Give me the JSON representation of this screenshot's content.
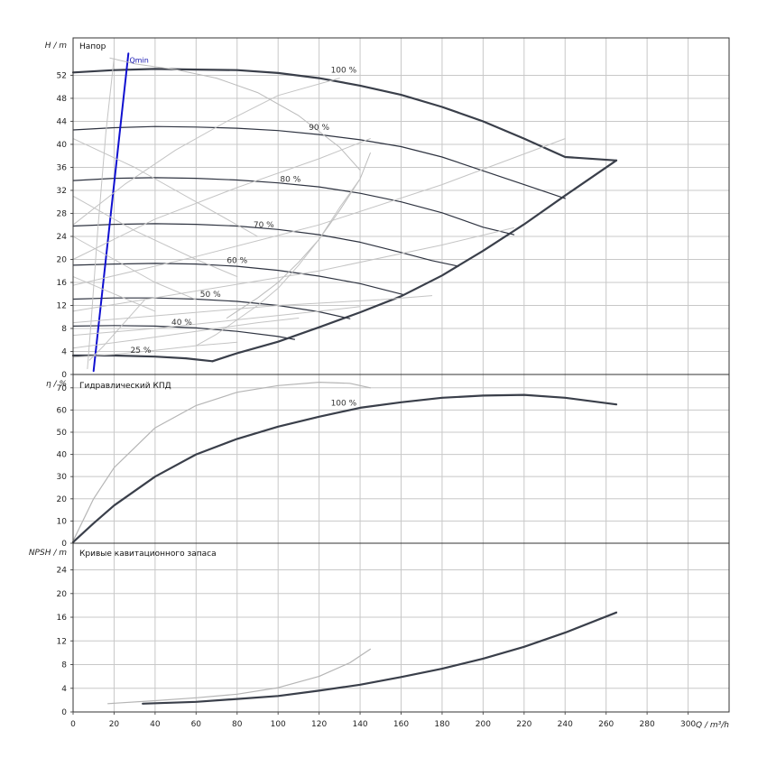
{
  "chart_data": {
    "type": "line",
    "x_axis": {
      "label": "Q / m³/h",
      "range": [
        0,
        320
      ],
      "ticks": [
        "0",
        "20",
        "40",
        "60",
        "80",
        "100",
        "120",
        "140",
        "160",
        "180",
        "200",
        "220",
        "240",
        "260",
        "280",
        "300"
      ]
    },
    "panels": [
      {
        "id": "head",
        "title": "Напор",
        "ylabel": "H / m",
        "ylim": [
          0,
          58.5
        ],
        "yticks": [
          0,
          4,
          8,
          12,
          16,
          20,
          24,
          28,
          32,
          36,
          40,
          44,
          48,
          52
        ],
        "series": [
          {
            "name": "100 %",
            "label": "100 %",
            "label_at": [
              132,
              52.5
            ],
            "color": "#3a3f4a",
            "width": 2.2,
            "x": [
              0,
              20,
              40,
              60,
              80,
              100,
              120,
              140,
              160,
              180,
              200,
              220,
              240,
              265
            ],
            "y": [
              52.5,
              52.9,
              53.1,
              53.0,
              52.9,
              52.4,
              51.5,
              50.2,
              48.6,
              46.5,
              44.0,
              41.0,
              37.8,
              37.2
            ]
          },
          {
            "name": "90 %",
            "label": "90 %",
            "label_at": [
              120,
              42.5
            ],
            "color": "#2e3340",
            "width": 1.2,
            "x": [
              0,
              20,
              40,
              60,
              80,
              100,
              120,
              140,
              160,
              180,
              200,
              220,
              240
            ],
            "y": [
              42.5,
              42.9,
              43.1,
              43.0,
              42.8,
              42.4,
              41.7,
              40.8,
              39.6,
              37.8,
              35.4,
              33.0,
              30.6
            ]
          },
          {
            "name": "80 %",
            "label": "80 %",
            "label_at": [
              106,
              33.5
            ],
            "color": "#2e3340",
            "width": 1.2,
            "x": [
              0,
              20,
              40,
              60,
              80,
              100,
              120,
              140,
              160,
              180,
              200,
              215
            ],
            "y": [
              33.7,
              34.1,
              34.2,
              34.1,
              33.8,
              33.3,
              32.6,
              31.5,
              30.0,
              28.1,
              25.6,
              24.3
            ]
          },
          {
            "name": "70 %",
            "label": "70 %",
            "label_at": [
              93,
              25.6
            ],
            "color": "#2e3340",
            "width": 1.2,
            "x": [
              0,
              20,
              40,
              60,
              80,
              100,
              120,
              140,
              160,
              175,
              188
            ],
            "y": [
              25.8,
              26.1,
              26.2,
              26.1,
              25.8,
              25.2,
              24.3,
              23.0,
              21.2,
              19.8,
              18.8
            ]
          },
          {
            "name": "60 %",
            "label": "60 %",
            "label_at": [
              80,
              19.4
            ],
            "color": "#2e3340",
            "width": 1.2,
            "x": [
              0,
              20,
              40,
              60,
              80,
              100,
              120,
              140,
              161
            ],
            "y": [
              19.0,
              19.2,
              19.3,
              19.2,
              18.8,
              18.1,
              17.1,
              15.8,
              13.9
            ]
          },
          {
            "name": "50 %",
            "label": "50 %",
            "label_at": [
              67,
              13.5
            ],
            "color": "#2e3340",
            "width": 1.2,
            "x": [
              0,
              20,
              40,
              60,
              80,
              100,
              120,
              135
            ],
            "y": [
              13.1,
              13.3,
              13.3,
              13.1,
              12.7,
              12.0,
              10.9,
              9.7
            ]
          },
          {
            "name": "40 %",
            "label": "40 %",
            "label_at": [
              53,
              8.6
            ],
            "color": "#2e3340",
            "width": 1.2,
            "x": [
              0,
              20,
              40,
              60,
              80,
              100,
              108
            ],
            "y": [
              8.4,
              8.5,
              8.4,
              8.1,
              7.5,
              6.6,
              6.1
            ]
          },
          {
            "name": "25 %",
            "label": "25 %",
            "label_at": [
              33,
              3.8
            ],
            "color": "#3a3f4a",
            "width": 2.2,
            "x": [
              0,
              20,
              40,
              55,
              68
            ],
            "y": [
              3.3,
              3.3,
              3.1,
              2.8,
              2.3
            ]
          },
          {
            "name": "",
            "color": "#3a3f4a",
            "width": 2.2,
            "x": [
              68,
              80,
              100,
              120,
              140,
              160,
              180,
              200,
              220,
              240,
              265
            ],
            "y": [
              2.3,
              3.7,
              5.7,
              8.2,
              10.8,
              13.6,
              17.2,
              21.5,
              26.1,
              31.1,
              37.2
            ]
          },
          {
            "name": "Qmin",
            "label": "Qmin",
            "label_at": [
              27.5,
              54.2
            ],
            "color": "#1010d0",
            "width": 2.0,
            "x": [
              10,
              27
            ],
            "y": [
              0.6,
              55.8
            ]
          },
          {
            "name": "",
            "color": "#bbbbbb",
            "width": 1.0,
            "x": [
              18,
              30,
              50,
              70,
              90,
              110,
              130,
              140
            ],
            "y": [
              55.0,
              54.0,
              53.0,
              51.5,
              49.0,
              45.0,
              39.5,
              35.5
            ]
          },
          {
            "name": "",
            "color": "#bbbbbb",
            "width": 1.0,
            "x": [
              145,
              140,
              130,
              120,
              110,
              100,
              90,
              80,
              75
            ],
            "y": [
              38.5,
              34.0,
              28.5,
              23.5,
              19.5,
              16.0,
              13.3,
              11.0,
              9.8
            ]
          },
          {
            "name": "",
            "color": "#c4c4c4",
            "width": 1.0,
            "x": [
              0,
              25,
              50,
              75,
              100,
              130
            ],
            "y": [
              26,
              33,
              39,
              44,
              48.5,
              51.5
            ]
          },
          {
            "name": "",
            "color": "#c4c4c4",
            "width": 1.0,
            "x": [
              0,
              40,
              80,
              120,
              145
            ],
            "y": [
              20,
              27,
              32.5,
              37.5,
              41
            ]
          },
          {
            "name": "",
            "color": "#c4c4c4",
            "width": 1.0,
            "x": [
              0,
              60,
              120,
              180,
              240
            ],
            "y": [
              15.5,
              20.5,
              26,
              33,
              41
            ]
          },
          {
            "name": "",
            "color": "#c4c4c4",
            "width": 1.0,
            "x": [
              0,
              60,
              120,
              180,
              215
            ],
            "y": [
              11,
              14.5,
              18,
              22.5,
              25.5
            ]
          },
          {
            "name": "",
            "color": "#c4c4c4",
            "width": 1.0,
            "x": [
              0,
              50,
              100,
              150,
              175
            ],
            "y": [
              9,
              10.5,
              12,
              13,
              13.7
            ]
          },
          {
            "name": "",
            "color": "#c4c4c4",
            "width": 1.0,
            "x": [
              0,
              40,
              80,
              120,
              140
            ],
            "y": [
              6.8,
              8,
              9.5,
              11,
              11.8
            ]
          },
          {
            "name": "",
            "color": "#c4c4c4",
            "width": 1.0,
            "x": [
              0,
              30,
              60,
              90,
              110
            ],
            "y": [
              4.6,
              6,
              7.5,
              9,
              9.8
            ]
          },
          {
            "name": "",
            "color": "#c4c4c4",
            "width": 1.0,
            "x": [
              0,
              20,
              40,
              60,
              80
            ],
            "y": [
              3.0,
              3.5,
              4.2,
              5,
              5.6
            ]
          },
          {
            "name": "",
            "color": "#c4c4c4",
            "width": 1.0,
            "x": [
              8,
              15,
              25,
              35
            ],
            "y": [
              2.5,
              5,
              9,
              13
            ]
          },
          {
            "name": "",
            "color": "#c4c4c4",
            "width": 1.0,
            "x": [
              0,
              30,
              60,
              90
            ],
            "y": [
              41,
              36,
              30,
              24
            ]
          },
          {
            "name": "",
            "color": "#c4c4c4",
            "width": 1.0,
            "x": [
              0,
              30,
              60,
              80
            ],
            "y": [
              31,
              25,
              20,
              17
            ]
          },
          {
            "name": "",
            "color": "#c4c4c4",
            "width": 1.0,
            "x": [
              0,
              20,
              40,
              60
            ],
            "y": [
              24,
              20,
              16,
              13
            ]
          },
          {
            "name": "",
            "color": "#c4c4c4",
            "width": 1.0,
            "x": [
              0,
              20,
              40
            ],
            "y": [
              17,
              14,
              11
            ]
          },
          {
            "name": "",
            "color": "#c4c4c4",
            "width": 1.0,
            "x": [
              60,
              70,
              80,
              90,
              100,
              110,
              120,
              130,
              140
            ],
            "y": [
              5,
              7,
              9.5,
              12,
              15,
              19,
              23.5,
              29,
              34
            ]
          },
          {
            "name": "",
            "color": "#c4c4c4",
            "width": 1.0,
            "x": [
              7,
              9,
              12,
              16,
              20
            ],
            "y": [
              1,
              10,
              25,
              42,
              55
            ]
          }
        ]
      },
      {
        "id": "efficiency",
        "title": "Гидравлический КПД",
        "ylabel": "η / %",
        "ylim": [
          0,
          76
        ],
        "yticks": [
          0,
          10,
          20,
          30,
          40,
          50,
          60,
          70
        ],
        "series": [
          {
            "name": "100 %",
            "label": "100 %",
            "label_at": [
              132,
              62
            ],
            "color": "#3a3f4a",
            "width": 2.2,
            "x": [
              0,
              10,
              20,
              40,
              60,
              80,
              100,
              120,
              140,
              160,
              180,
              200,
              220,
              240,
              265
            ],
            "y": [
              0.5,
              9,
              17,
              30,
              40,
              47,
              52.5,
              57,
              61,
              63.5,
              65.5,
              66.5,
              66.8,
              65.5,
              62.5
            ]
          },
          {
            "name": "",
            "color": "#b5b5b5",
            "width": 1.2,
            "x": [
              0,
              10,
              20,
              40,
              60,
              80,
              100,
              120,
              135,
              145
            ],
            "y": [
              1,
              20,
              34,
              52,
              62,
              68,
              71,
              72.5,
              72,
              70
            ]
          }
        ]
      },
      {
        "id": "npsh",
        "title": "Кривые кавитационного запаса",
        "ylabel": "NPSH / m",
        "ylim": [
          0,
          28.5
        ],
        "yticks": [
          0,
          4,
          8,
          12,
          16,
          20,
          24
        ],
        "series": [
          {
            "name": "",
            "color": "#3a3f4a",
            "width": 2.2,
            "x": [
              34,
              60,
              80,
              100,
              120,
              140,
              160,
              180,
              200,
              220,
              240,
              265
            ],
            "y": [
              1.4,
              1.7,
              2.2,
              2.7,
              3.6,
              4.6,
              5.9,
              7.3,
              9.0,
              11.0,
              13.4,
              16.8
            ]
          },
          {
            "name": "",
            "color": "#b5b5b5",
            "width": 1.2,
            "x": [
              17,
              40,
              60,
              80,
              100,
              120,
              135,
              145
            ],
            "y": [
              1.4,
              1.9,
              2.4,
              3.0,
              4.1,
              6.0,
              8.3,
              10.6
            ]
          }
        ]
      }
    ]
  }
}
